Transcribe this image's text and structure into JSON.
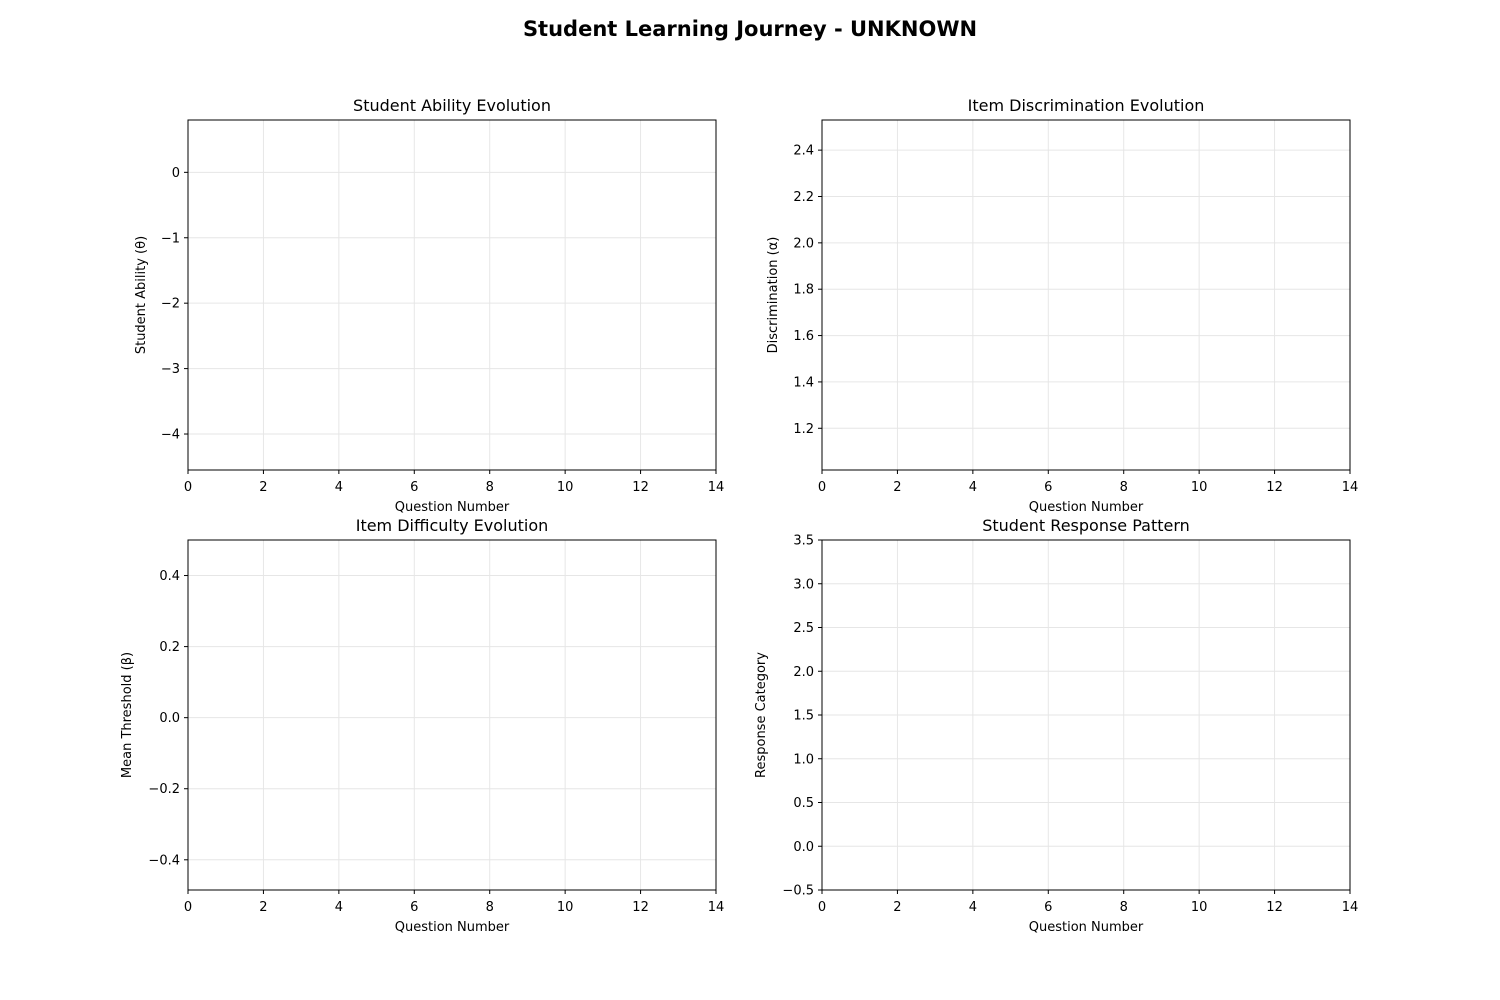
{
  "figure": {
    "title": "Student Learning Journey - UNKNOWN"
  },
  "colors": {
    "grid": "#e6e6e6",
    "axes": "#000000",
    "background": "#ffffff"
  },
  "chart_data": [
    {
      "type": "line",
      "title": "Student Ability Evolution",
      "xlabel": "Question Number",
      "ylabel": "Student Ability (θ)",
      "xlim": [
        0,
        14
      ],
      "ylim": [
        -4.55,
        0.8
      ],
      "x_ticks": [
        0,
        2,
        4,
        6,
        8,
        10,
        12,
        14
      ],
      "x_tick_labels": [
        "0",
        "2",
        "4",
        "6",
        "8",
        "10",
        "12",
        "14"
      ],
      "y_ticks": [
        0,
        -1,
        -2,
        -3,
        -4
      ],
      "y_tick_labels": [
        "0",
        "−1",
        "−2",
        "−3",
        "−4"
      ],
      "grid": true,
      "series": []
    },
    {
      "type": "line",
      "title": "Item Discrimination Evolution",
      "xlabel": "Question Number",
      "ylabel": "Discrimination (α)",
      "xlim": [
        0,
        14
      ],
      "ylim": [
        1.02,
        2.53
      ],
      "x_ticks": [
        0,
        2,
        4,
        6,
        8,
        10,
        12,
        14
      ],
      "x_tick_labels": [
        "0",
        "2",
        "4",
        "6",
        "8",
        "10",
        "12",
        "14"
      ],
      "y_ticks": [
        1.2,
        1.4,
        1.6,
        1.8,
        2.0,
        2.2,
        2.4
      ],
      "y_tick_labels": [
        "1.2",
        "1.4",
        "1.6",
        "1.8",
        "2.0",
        "2.2",
        "2.4"
      ],
      "grid": true,
      "series": []
    },
    {
      "type": "line",
      "title": "Item Difficulty Evolution",
      "xlabel": "Question Number",
      "ylabel": "Mean Threshold (β)",
      "xlim": [
        0,
        14
      ],
      "ylim": [
        -0.485,
        0.5
      ],
      "x_ticks": [
        0,
        2,
        4,
        6,
        8,
        10,
        12,
        14
      ],
      "x_tick_labels": [
        "0",
        "2",
        "4",
        "6",
        "8",
        "10",
        "12",
        "14"
      ],
      "y_ticks": [
        0.4,
        0.2,
        0.0,
        -0.2,
        -0.4
      ],
      "y_tick_labels": [
        "0.4",
        "0.2",
        "0.0",
        "−0.2",
        "−0.4"
      ],
      "grid": true,
      "series": []
    },
    {
      "type": "scatter",
      "title": "Student Response Pattern",
      "xlabel": "Question Number",
      "ylabel": "Response Category",
      "xlim": [
        0,
        14
      ],
      "ylim": [
        -0.5,
        3.5
      ],
      "x_ticks": [
        0,
        2,
        4,
        6,
        8,
        10,
        12,
        14
      ],
      "x_tick_labels": [
        "0",
        "2",
        "4",
        "6",
        "8",
        "10",
        "12",
        "14"
      ],
      "y_ticks": [
        -0.5,
        0.0,
        0.5,
        1.0,
        1.5,
        2.0,
        2.5,
        3.0,
        3.5
      ],
      "y_tick_labels": [
        "−0.5",
        "0.0",
        "0.5",
        "1.0",
        "1.5",
        "2.0",
        "2.5",
        "3.0",
        "3.5"
      ],
      "grid": true,
      "series": []
    }
  ]
}
